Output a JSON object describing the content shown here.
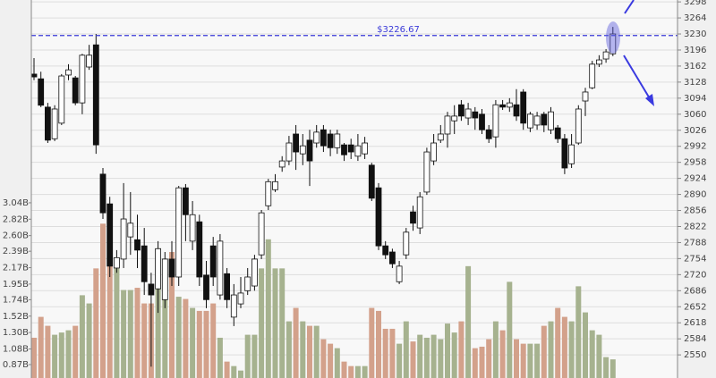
{
  "chart_data": {
    "type": "candlestick",
    "up_color": "#ffffff",
    "down_color": "#111111",
    "volume_up_color": "#a6b28f",
    "volume_down_color": "#d3a18b",
    "grid": true,
    "open": [
      3145,
      3135,
      3075,
      3008,
      3041,
      3143,
      3137,
      3084,
      3160,
      3207,
      2933,
      2870,
      2734,
      2753,
      2800,
      2794,
      2781,
      2700,
      2690,
      2667,
      2753,
      2715,
      2904,
      2791,
      2832,
      2719,
      2781,
      2677,
      2722,
      2630,
      2658,
      2686,
      2696,
      2762,
      2866,
      2900,
      2948,
      2961,
      3018,
      2976,
      3005,
      2999,
      3027,
      3018,
      2989,
      2995,
      2995,
      2971,
      2976,
      2952,
      2904,
      2781,
      2768,
      2705,
      2762,
      2853,
      2819,
      2895,
      2961,
      3005,
      3018,
      3046,
      3080,
      3052,
      3065,
      3060,
      3027,
      3012,
      3080,
      3075,
      3080,
      3107,
      3031,
      3037,
      3060,
      3027,
      3031,
      3008,
      2955,
      2999,
      3088,
      3116,
      3166,
      3177,
      3188
    ],
    "high": [
      3179,
      3150,
      3084,
      3079,
      3145,
      3166,
      3141,
      3188,
      3207,
      3230,
      2946,
      2885,
      2772,
      2914,
      2895,
      2847,
      2819,
      2724,
      2791,
      2768,
      2791,
      2908,
      2912,
      2876,
      2847,
      2749,
      2800,
      2806,
      2734,
      2700,
      2715,
      2734,
      2762,
      2857,
      2923,
      2933,
      2971,
      3014,
      3037,
      3018,
      3027,
      3037,
      3037,
      3027,
      3027,
      2999,
      3008,
      3018,
      3012,
      2957,
      2914,
      2791,
      2775,
      2749,
      2819,
      2866,
      2895,
      2989,
      3018,
      3037,
      3065,
      3079,
      3090,
      3084,
      3075,
      3071,
      3037,
      3090,
      3090,
      3094,
      3113,
      3113,
      3065,
      3065,
      3065,
      3075,
      3037,
      3018,
      3018,
      3079,
      3116,
      3173,
      3185,
      3198,
      3245
    ],
    "low": [
      3132,
      3075,
      2999,
      3003,
      3037,
      3132,
      3079,
      3060,
      3154,
      2976,
      2838,
      2715,
      2724,
      2734,
      2762,
      2734,
      2677,
      2525,
      2639,
      2649,
      2696,
      2696,
      2791,
      2772,
      2696,
      2649,
      2696,
      2667,
      2649,
      2611,
      2649,
      2677,
      2686,
      2753,
      2857,
      2895,
      2938,
      2952,
      2942,
      2952,
      2908,
      2989,
      2980,
      2971,
      2976,
      2961,
      2965,
      2961,
      2965,
      2876,
      2772,
      2753,
      2734,
      2700,
      2753,
      2813,
      2806,
      2889,
      2952,
      2999,
      2989,
      3018,
      3046,
      3037,
      3027,
      3018,
      2999,
      2989,
      3069,
      3065,
      3046,
      3027,
      3022,
      3027,
      3022,
      3018,
      2999,
      2933,
      2946,
      2995,
      3056,
      3113,
      3160,
      3169,
      3183
    ],
    "close": [
      3139,
      3079,
      3005,
      3071,
      3141,
      3154,
      3084,
      3185,
      3185,
      2995,
      2851,
      2738,
      2756,
      2838,
      2829,
      2772,
      2705,
      2677,
      2775,
      2753,
      2715,
      2904,
      2847,
      2847,
      2715,
      2667,
      2715,
      2791,
      2667,
      2677,
      2681,
      2715,
      2753,
      2851,
      2917,
      2917,
      2961,
      2999,
      2980,
      2993,
      2961,
      3022,
      2993,
      2989,
      3018,
      2974,
      2980,
      2993,
      2999,
      2882,
      2781,
      2762,
      2743,
      2738,
      2810,
      2829,
      2885,
      2980,
      2999,
      3018,
      3056,
      3056,
      3056,
      3071,
      3052,
      3027,
      3008,
      3080,
      3075,
      3084,
      3056,
      3041,
      3060,
      3056,
      3037,
      3065,
      3008,
      2946,
      2995,
      3071,
      3107,
      3166,
      3175,
      3192,
      3230
    ],
    "volume": [
      1.23,
      1.51,
      1.39,
      1.27,
      1.3,
      1.33,
      1.39,
      1.8,
      1.69,
      2.16,
      2.76,
      2.88,
      2.16,
      1.87,
      1.87,
      1.9,
      1.69,
      1.69,
      2.43,
      2.1,
      2.38,
      1.78,
      1.75,
      1.63,
      1.59,
      1.59,
      1.69,
      1.23,
      0.91,
      0.85,
      0.79,
      1.27,
      1.27,
      2.16,
      2.55,
      2.16,
      2.16,
      1.45,
      1.63,
      1.45,
      1.39,
      1.39,
      1.21,
      1.15,
      1.09,
      0.91,
      0.85,
      0.85,
      0.85,
      1.63,
      1.59,
      1.35,
      1.35,
      1.15,
      1.45,
      1.18,
      1.27,
      1.23,
      1.27,
      1.21,
      1.42,
      1.3,
      1.45,
      2.19,
      1.09,
      1.11,
      1.21,
      1.45,
      1.33,
      1.98,
      1.21,
      1.15,
      1.15,
      1.15,
      1.39,
      1.45,
      1.63,
      1.51,
      1.45,
      1.92,
      1.57,
      1.33,
      1.27,
      0.97,
      0.94
    ],
    "ylim": [
      2501,
      3302
    ],
    "yticks": [
      2550,
      2584,
      2618,
      2652,
      2686,
      2720,
      2754,
      2788,
      2822,
      2856,
      2890,
      2924,
      2958,
      2992,
      3026,
      3060,
      3094,
      3128,
      3162,
      3196,
      3230,
      3264,
      3298
    ],
    "volume_ylim": [
      0.69,
      5.76
    ],
    "volume_ticks": [
      {
        "value": 0.87,
        "label": "0.87B"
      },
      {
        "value": 1.08,
        "label": "1.08B"
      },
      {
        "value": 1.3,
        "label": "1.30B"
      },
      {
        "value": 1.52,
        "label": "1.52B"
      },
      {
        "value": 1.74,
        "label": "1.74B"
      },
      {
        "value": 1.95,
        "label": "1.95B"
      },
      {
        "value": 2.17,
        "label": "2.17B"
      },
      {
        "value": 2.39,
        "label": "2.39B"
      },
      {
        "value": 2.6,
        "label": "2.60B"
      },
      {
        "value": 2.82,
        "label": "2.82B"
      },
      {
        "value": 3.04,
        "label": "3.04B"
      }
    ],
    "reference_line": {
      "value": 3226.67,
      "label": "$3226.67",
      "color": "#3a3ad8"
    }
  }
}
